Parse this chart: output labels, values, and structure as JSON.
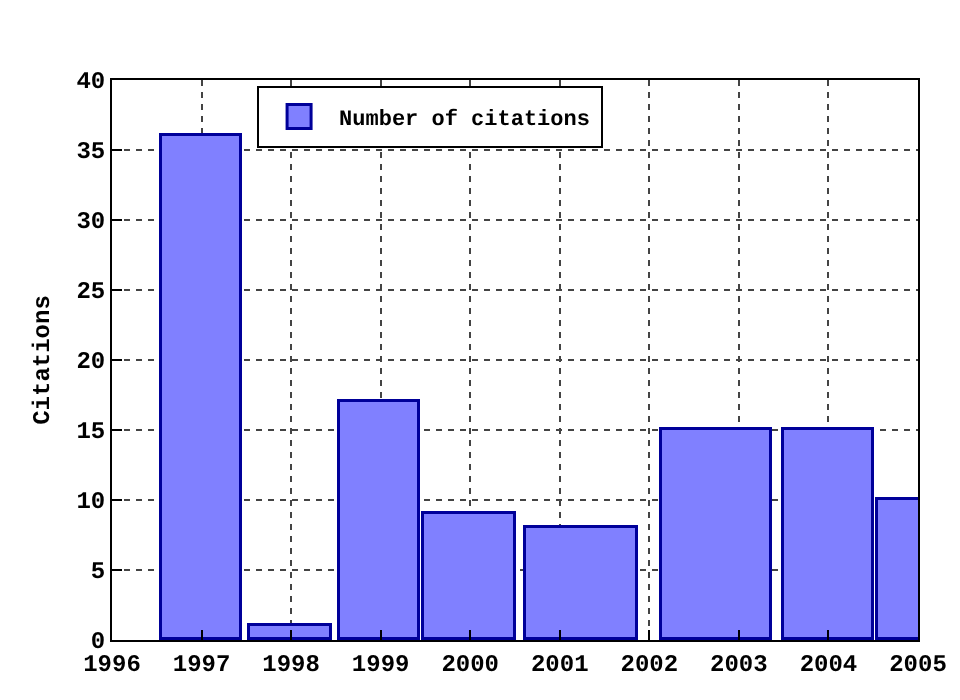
{
  "chart_data": {
    "type": "bar",
    "ylabel": "Citations",
    "x": [
      1997,
      1998,
      1999,
      2000,
      2001.25,
      2002.75,
      2004,
      2005
    ],
    "series": [
      {
        "name": "Number of citations",
        "color": "#8080ff",
        "values": [
          36,
          1,
          17,
          9,
          8,
          15,
          15,
          10
        ]
      }
    ],
    "xlim": [
      1996,
      2005
    ],
    "xticks": [
      1996,
      1997,
      1998,
      1999,
      2000,
      2001,
      2002,
      2003,
      2004,
      2005
    ],
    "ylim": [
      0,
      40
    ],
    "yticks": [
      0,
      5,
      10,
      15,
      20,
      25,
      30,
      35,
      40
    ],
    "grid": true,
    "legend": "top left"
  }
}
